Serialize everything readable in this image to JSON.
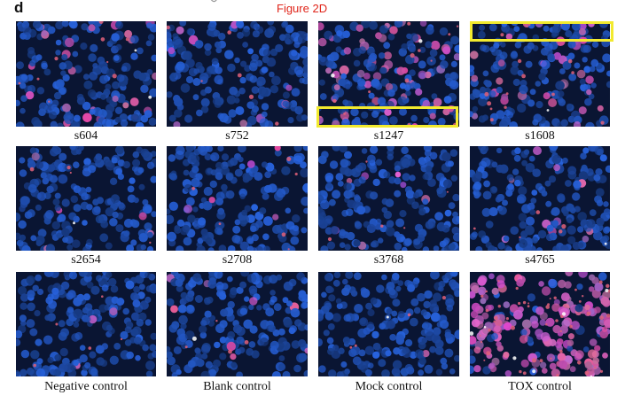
{
  "panel_letter": "d",
  "figure_label": "Figure 2D",
  "highlight_color": "#f2ea2e",
  "stain_colors": {
    "nuclei": "#3a6fe0",
    "background": "#0a1533",
    "signal": "#e0607a"
  },
  "panels": [
    {
      "label": "s604",
      "signal_level": 0.12,
      "icon": "fluorescence-micrograph"
    },
    {
      "label": "s752",
      "signal_level": 0.03,
      "icon": "fluorescence-micrograph"
    },
    {
      "label": "s1247",
      "signal_level": 0.22,
      "icon": "fluorescence-micrograph"
    },
    {
      "label": "s1608",
      "signal_level": 0.18,
      "icon": "fluorescence-micrograph"
    },
    {
      "label": "s2654",
      "signal_level": 0.02,
      "icon": "fluorescence-micrograph"
    },
    {
      "label": "s2708",
      "signal_level": 0.04,
      "icon": "fluorescence-micrograph"
    },
    {
      "label": "s3768",
      "signal_level": 0.02,
      "icon": "fluorescence-micrograph"
    },
    {
      "label": "s4765",
      "signal_level": 0.03,
      "icon": "fluorescence-micrograph"
    },
    {
      "label": "Negative control",
      "signal_level": 0.01,
      "icon": "fluorescence-micrograph"
    },
    {
      "label": "Blank control",
      "signal_level": 0.02,
      "icon": "fluorescence-micrograph"
    },
    {
      "label": "Mock control",
      "signal_level": 0.02,
      "icon": "fluorescence-micrograph"
    },
    {
      "label": "TOX control",
      "signal_level": 0.85,
      "icon": "fluorescence-micrograph"
    }
  ]
}
